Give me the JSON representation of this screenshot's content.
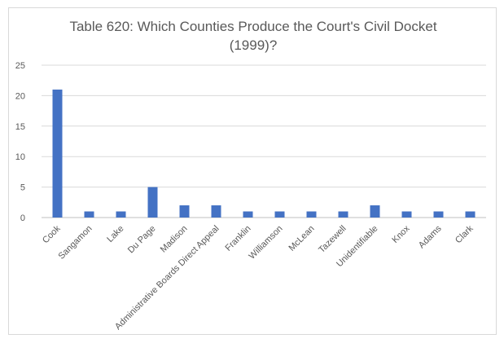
{
  "chart_data": {
    "type": "bar",
    "title_lines": [
      "Table 620: Which Counties Produce the Court's Civil Docket",
      "(1999)?"
    ],
    "categories": [
      "Cook",
      "Sangamon",
      "Lake",
      "Du Page",
      "Madison",
      "Administrative Boards Direct Appeal",
      "Franklin",
      "Williamson",
      "McLean",
      "Tazewell",
      "Unidentifiable",
      "Knox",
      "Adams",
      "Clark"
    ],
    "values": [
      21,
      1,
      1,
      5,
      2,
      2,
      1,
      1,
      1,
      1,
      2,
      1,
      1,
      1
    ],
    "ylim": [
      0,
      25
    ],
    "yticks": [
      0,
      5,
      10,
      15,
      20,
      25
    ],
    "grid": true,
    "legend": "none",
    "colors": {
      "bar": "#4472c4",
      "grid": "#d9d9d9",
      "text": "#595959"
    }
  }
}
